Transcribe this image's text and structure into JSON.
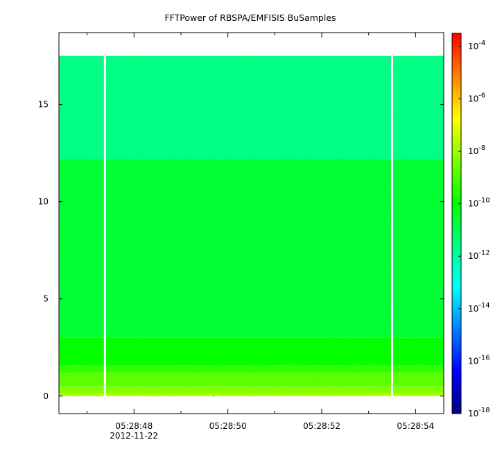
{
  "chart_data": {
    "type": "heatmap",
    "title": "FFTPower of RBSPA/EMFISIS  BuSamples",
    "xlabel": "",
    "ylabel": "",
    "x_ticks": [
      {
        "label": "05:28:48",
        "sub": "2012-11-22",
        "t": 48
      },
      {
        "label": "05:28:50",
        "sub": "",
        "t": 50
      },
      {
        "label": "05:28:52",
        "sub": "",
        "t": 52
      },
      {
        "label": "05:28:54",
        "sub": "",
        "t": 54
      }
    ],
    "x_minor_ticks": [
      47,
      49,
      51,
      53
    ],
    "xlim_seconds": [
      46.4,
      54.6
    ],
    "ylim": [
      -0.9,
      18.7
    ],
    "y_ticks": [
      0,
      5,
      10,
      15
    ],
    "data_extent": {
      "t_start": 46.4,
      "t_end": 54.6,
      "y_min": 0.0,
      "y_max": 17.5
    },
    "gaps_seconds": [
      47.38,
      53.5
    ],
    "bands": [
      {
        "y0": 0.0,
        "y1": 0.15,
        "level": -7.8
      },
      {
        "y0": 0.15,
        "y1": 0.5,
        "level": -8.3
      },
      {
        "y0": 0.5,
        "y1": 1.2,
        "level": -8.8
      },
      {
        "y0": 1.2,
        "y1": 1.6,
        "level": -9.3
      },
      {
        "y0": 1.6,
        "y1": 3.0,
        "level": -9.9
      },
      {
        "y0": 3.0,
        "y1": 12.2,
        "level": -10.6
      },
      {
        "y0": 12.2,
        "y1": 17.5,
        "level": -11.6
      }
    ],
    "colorbar": {
      "scale": "log",
      "range_exponent": [
        -18,
        -3.5
      ],
      "tick_exponents": [
        -4,
        -6,
        -8,
        -10,
        -12,
        -14,
        -16,
        -18
      ],
      "tick_base": "10",
      "colors": [
        "#00007f",
        "#0000ff",
        "#0080ff",
        "#00ffff",
        "#00ff80",
        "#00ff00",
        "#80ff00",
        "#ffff00",
        "#ff8000",
        "#ff0000"
      ]
    }
  }
}
